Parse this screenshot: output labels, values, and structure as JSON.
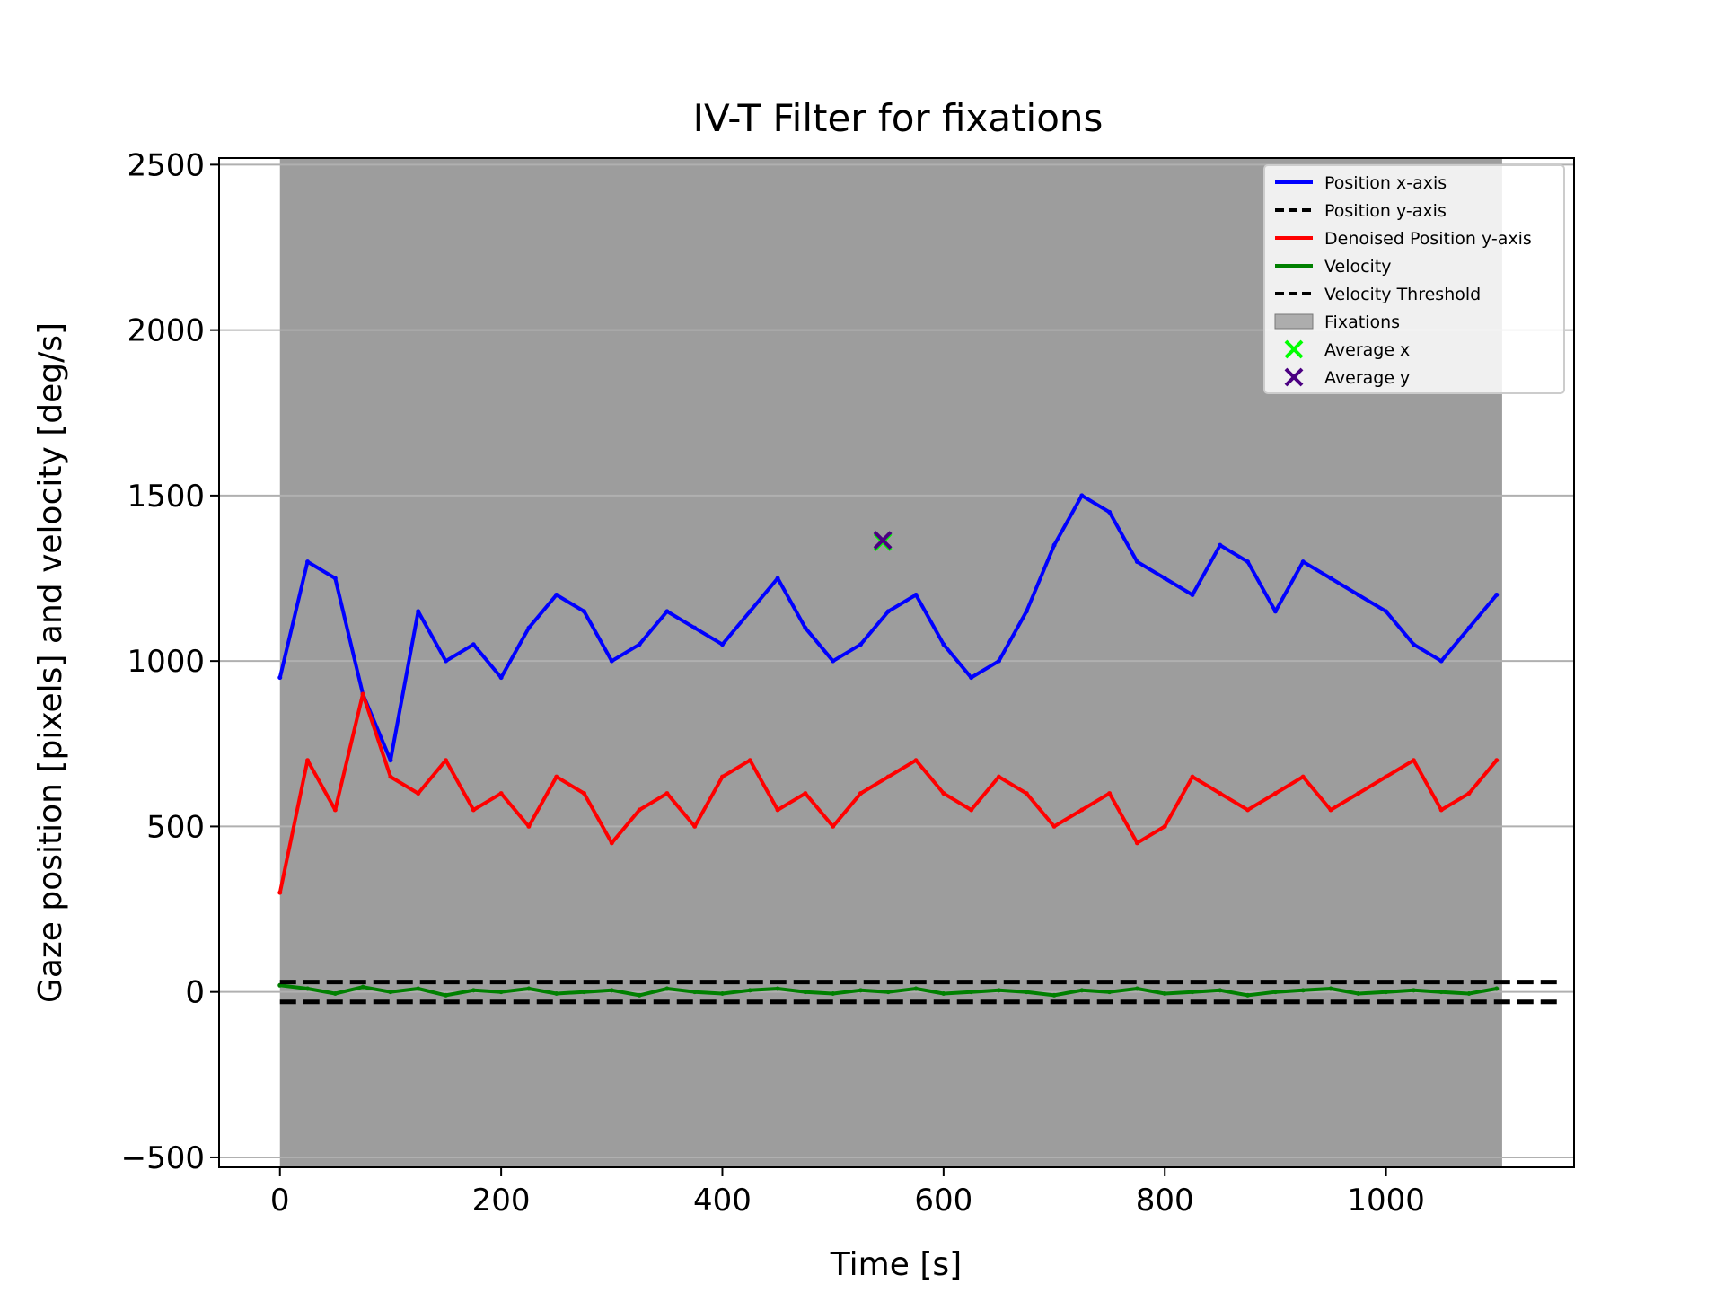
{
  "chart_data": {
    "type": "line",
    "title": "IV-T Filter for fixations",
    "xlabel": "Time [s]",
    "ylabel": "Gaze position [pixels] and velocity [deg/s]",
    "xlim": [
      -55,
      1170
    ],
    "ylim": [
      -530,
      2520
    ],
    "xticks": [
      0,
      200,
      400,
      600,
      800,
      1000
    ],
    "yticks": [
      -500,
      0,
      500,
      1000,
      1500,
      2000,
      2500
    ],
    "xtick_labels": [
      "0",
      "200",
      "400",
      "600",
      "800",
      "1000"
    ],
    "ytick_labels": [
      "−500",
      "0",
      "500",
      "1000",
      "1500",
      "2000",
      "2500"
    ],
    "grid": "horizontal",
    "legend_position": "top-right",
    "legend": [
      {
        "label": "Position x-axis",
        "kind": "line",
        "color": "#0000ff"
      },
      {
        "label": "Position y-axis",
        "kind": "dashed",
        "color": "#000000"
      },
      {
        "label": "Denoised Position y-axis",
        "kind": "line",
        "color": "#ff0000"
      },
      {
        "label": "Velocity",
        "kind": "line",
        "color": "#008000"
      },
      {
        "label": "Velocity Threshold",
        "kind": "dashed",
        "color": "#000000"
      },
      {
        "label": "Fixations",
        "kind": "patch",
        "color": "#808080"
      },
      {
        "label": "Average x",
        "kind": "marker",
        "color": "#00ff00"
      },
      {
        "label": "Average y",
        "kind": "marker",
        "color": "#4b0082"
      }
    ],
    "fixation_span": [
      0,
      1105
    ],
    "velocity_threshold": [
      30,
      -30
    ],
    "series": [
      {
        "name": "Position x-axis",
        "color": "#0000ff",
        "x": [
          0,
          25,
          50,
          75,
          100,
          125,
          150,
          175,
          200,
          225,
          250,
          275,
          300,
          325,
          350,
          375,
          400,
          425,
          450,
          475,
          500,
          525,
          550,
          575,
          600,
          625,
          650,
          675,
          700,
          725,
          750,
          775,
          800,
          825,
          850,
          875,
          900,
          925,
          950,
          975,
          1000,
          1025,
          1050,
          1075,
          1100
        ],
        "values": [
          950,
          1300,
          1250,
          900,
          700,
          1150,
          1000,
          1050,
          950,
          1100,
          1200,
          1150,
          1000,
          1050,
          1150,
          1100,
          1050,
          1150,
          1250,
          1100,
          1000,
          1050,
          1150,
          1200,
          1050,
          950,
          1000,
          1150,
          1350,
          1500,
          1450,
          1300,
          1250,
          1200,
          1350,
          1300,
          1150,
          1300,
          1250,
          1200,
          1150,
          1050,
          1000,
          1100,
          1200
        ]
      },
      {
        "name": "Denoised Position y-axis",
        "color": "#ff0000",
        "x": [
          0,
          25,
          50,
          75,
          100,
          125,
          150,
          175,
          200,
          225,
          250,
          275,
          300,
          325,
          350,
          375,
          400,
          425,
          450,
          475,
          500,
          525,
          550,
          575,
          600,
          625,
          650,
          675,
          700,
          725,
          750,
          775,
          800,
          825,
          850,
          875,
          900,
          925,
          950,
          975,
          1000,
          1025,
          1050,
          1075,
          1100
        ],
        "values": [
          300,
          700,
          550,
          900,
          650,
          600,
          700,
          550,
          600,
          500,
          650,
          600,
          450,
          550,
          600,
          500,
          650,
          700,
          550,
          600,
          500,
          600,
          650,
          700,
          600,
          550,
          650,
          600,
          500,
          550,
          600,
          450,
          500,
          650,
          600,
          550,
          600,
          650,
          550,
          600,
          650,
          700,
          550,
          600,
          700
        ]
      },
      {
        "name": "Velocity",
        "color": "#008000",
        "x": [
          0,
          25,
          50,
          75,
          100,
          125,
          150,
          175,
          200,
          225,
          250,
          275,
          300,
          325,
          350,
          375,
          400,
          425,
          450,
          475,
          500,
          525,
          550,
          575,
          600,
          625,
          650,
          675,
          700,
          725,
          750,
          775,
          800,
          825,
          850,
          875,
          900,
          925,
          950,
          975,
          1000,
          1025,
          1050,
          1075,
          1100
        ],
        "values": [
          20,
          10,
          -5,
          15,
          0,
          10,
          -10,
          5,
          0,
          10,
          -5,
          0,
          5,
          -10,
          10,
          0,
          -5,
          5,
          10,
          0,
          -5,
          5,
          0,
          10,
          -5,
          0,
          5,
          0,
          -10,
          5,
          0,
          10,
          -5,
          0,
          5,
          -10,
          0,
          5,
          10,
          -5,
          0,
          5,
          0,
          -5,
          10
        ]
      }
    ],
    "annotations": [
      {
        "label": "Average x",
        "marker": "x",
        "color": "#00ff00",
        "x": 545,
        "y": 1360
      },
      {
        "label": "Average y",
        "marker": "x",
        "color": "#4b0082",
        "x": 545,
        "y": 1365
      }
    ]
  }
}
